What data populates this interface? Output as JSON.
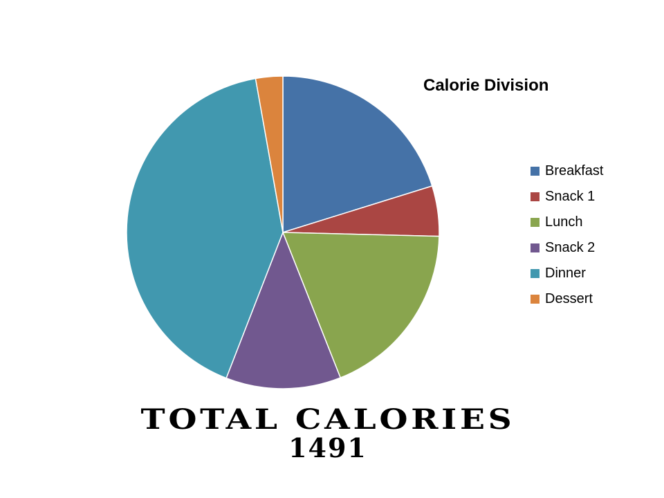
{
  "chart_data": {
    "type": "pie",
    "title": "Calorie Division",
    "categories": [
      "Breakfast",
      "Snack 1",
      "Lunch",
      "Snack 2",
      "Dinner",
      "Dessert"
    ],
    "values": [
      20.2,
      5.2,
      18.6,
      11.9,
      41.3,
      2.8
    ],
    "colors": [
      "#4572A7",
      "#AA4643",
      "#89A54E",
      "#71588F",
      "#4198AF",
      "#DB843D"
    ],
    "legend_position": "right"
  },
  "footer": {
    "total_label": "TOTAL CALORIES",
    "total_value": "1491"
  }
}
